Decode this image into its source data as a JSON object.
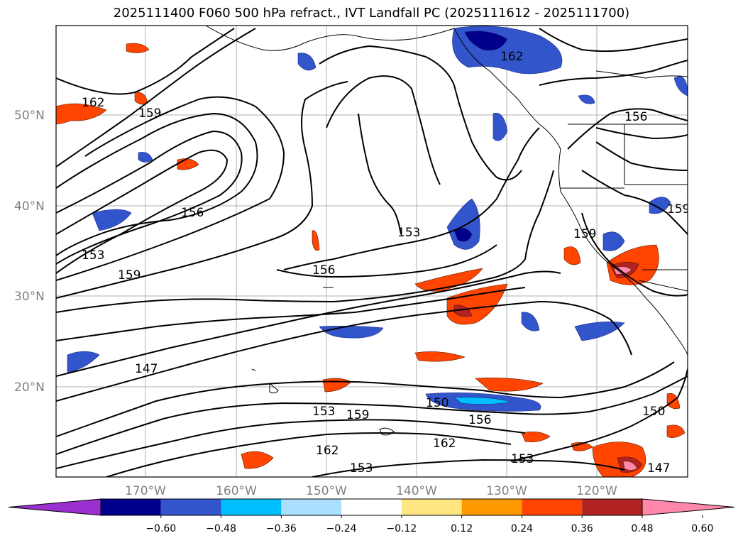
{
  "title": "2025111400 F060 500 hPa refract., IVT Landfall PC (2025111612 - 2025111700)",
  "map": {
    "lat_labels": [
      "50°N",
      "40°N",
      "30°N",
      "20°N"
    ],
    "lon_labels": [
      "170°W",
      "160°W",
      "150°W",
      "140°W",
      "130°W",
      "120°W"
    ],
    "contour_labels": [
      "162",
      "159",
      "156",
      "153",
      "162",
      "159",
      "156",
      "153",
      "147",
      "153",
      "159",
      "162",
      "153",
      "150",
      "156",
      "153",
      "150",
      "147",
      "156",
      "159",
      "159",
      "162"
    ],
    "grid": true
  },
  "colorbar": {
    "tick_labels": [
      "−0.60",
      "−0.48",
      "−0.36",
      "−0.24",
      "−0.12",
      "0.12",
      "0.24",
      "0.36",
      "0.48",
      "0.60"
    ],
    "colors": [
      "#9b30d0",
      "#00008b",
      "#3355cc",
      "#00bfff",
      "#aadfff",
      "#ffffff",
      "#ffe680",
      "#ff9900",
      "#ff4500",
      "#b22222",
      "#ff88aa"
    ]
  }
}
